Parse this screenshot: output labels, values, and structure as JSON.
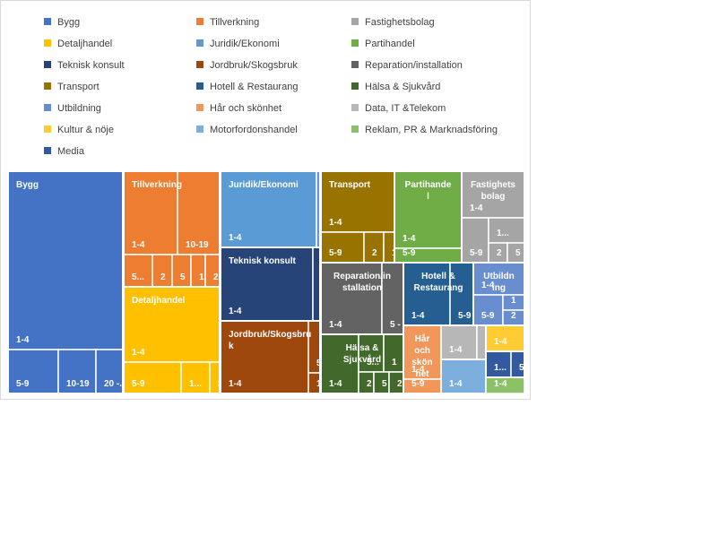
{
  "legend": [
    {
      "label": "Bygg",
      "color": "#4472c4"
    },
    {
      "label": "Tillverkning",
      "color": "#ed7d31"
    },
    {
      "label": "Fastighetsbolag",
      "color": "#a5a5a5"
    },
    {
      "label": "Detaljhandel",
      "color": "#ffc000"
    },
    {
      "label": "Juridik/Ekonomi",
      "color": "#5b9bd5"
    },
    {
      "label": "Partihandel",
      "color": "#70ad47"
    },
    {
      "label": "Teknisk konsult",
      "color": "#264478"
    },
    {
      "label": "Jordbruk/Skogsbruk",
      "color": "#9e480e"
    },
    {
      "label": "Reparation/installation",
      "color": "#636363"
    },
    {
      "label": "Transport",
      "color": "#997300"
    },
    {
      "label": "Hotell & Restaurang",
      "color": "#255e91"
    },
    {
      "label": "Hälsa & Sjukvård",
      "color": "#43682b"
    },
    {
      "label": "Utbildning",
      "color": "#698ed0"
    },
    {
      "label": "Hår och skönhet",
      "color": "#f1975a"
    },
    {
      "label": "Data, IT &Telekom",
      "color": "#b7b7b7"
    },
    {
      "label": "Kultur & nöje",
      "color": "#ffcd33"
    },
    {
      "label": "Motorfordonshandel",
      "color": "#7cafdd"
    },
    {
      "label": "Reklam, PR & Marknadsföring",
      "color": "#8cc168"
    },
    {
      "label": "Media",
      "color": "#335aa1"
    }
  ],
  "chart_data": {
    "type": "treemap",
    "title": "",
    "size_classes": [
      "1-4",
      "5-9",
      "10-19",
      "20-..."
    ],
    "groups": [
      {
        "name": "Bygg",
        "color": "#4472c4",
        "cells": [
          {
            "label": "1-4",
            "value": 25.2
          },
          {
            "label": "5-9",
            "value": 2.0
          },
          {
            "label": "10-19",
            "value": 1.6
          },
          {
            "label": "20 -...",
            "value": 1.2
          }
        ]
      },
      {
        "name": "Tillverkning",
        "color": "#ed7d31",
        "cells": [
          {
            "label": "1-4",
            "value": 3.9
          },
          {
            "label": "10-19",
            "value": 3.1
          },
          {
            "label": "5...",
            "value": 1.1
          },
          {
            "label": "2",
            "value": 0.9
          },
          {
            "label": "5",
            "value": 0.7
          },
          {
            "label": "1",
            "value": 0.6
          },
          {
            "label": "2",
            "value": 0.6
          }
        ]
      },
      {
        "name": "Detaljhandel",
        "color": "#ffc000",
        "cells": [
          {
            "label": "1-4",
            "value": 5.3
          },
          {
            "label": "5-9",
            "value": 2.3
          },
          {
            "label": "1...",
            "value": 1.0
          },
          {
            "label": "2",
            "value": 0.4
          }
        ]
      },
      {
        "name": "Juridik/Ekonomi",
        "color": "#5b9bd5",
        "cells": [
          {
            "label": "1-4",
            "value": 6.0
          },
          {
            "label": "",
            "value": 0.4
          }
        ]
      },
      {
        "name": "Teknisk konsult",
        "color": "#264478",
        "cells": [
          {
            "label": "1-4",
            "value": 5.6
          },
          {
            "label": "",
            "value": 0.4
          }
        ]
      },
      {
        "name": "Jordbruk/Skogsbruk",
        "color": "#9e480e",
        "cells": [
          {
            "label": "1-4",
            "value": 6.2
          },
          {
            "label": "5 -",
            "value": 0.7
          },
          {
            "label": "1",
            "value": 0.4
          }
        ]
      },
      {
        "name": "Transport",
        "color": "#997300",
        "cells": [
          {
            "label": "1-4",
            "value": 3.7
          },
          {
            "label": "5-9",
            "value": 1.1
          },
          {
            "label": "2",
            "value": 0.6
          },
          {
            "label": "1",
            "value": 0.3
          }
        ]
      },
      {
        "name": "Partihandel",
        "color": "#70ad47",
        "cells": [
          {
            "label": "1-4",
            "value": 4.3
          },
          {
            "label": "5-9",
            "value": 0.9
          }
        ]
      },
      {
        "name": "Fastighetsbolag",
        "color": "#a5a5a5",
        "cells": [
          {
            "label": "1-4",
            "value": 1.7
          },
          {
            "label": "5-9",
            "value": 1.0
          },
          {
            "label": "1...",
            "value": 0.7
          },
          {
            "label": "2",
            "value": 0.4
          },
          {
            "label": "5",
            "value": 0.3
          }
        ]
      },
      {
        "name": "Reparation/installation",
        "color": "#636363",
        "cells": [
          {
            "label": "1-4",
            "value": 3.6
          },
          {
            "label": "5 - 9",
            "value": 0.9
          }
        ]
      },
      {
        "name": "Hotell & Restaurang",
        "color": "#255e91",
        "cells": [
          {
            "label": "1-4",
            "value": 2.6
          },
          {
            "label": "5-9",
            "value": 1.2
          }
        ]
      },
      {
        "name": "Utbildning",
        "color": "#698ed0",
        "cells": [
          {
            "label": "1-4",
            "value": 1.3
          },
          {
            "label": "5-9",
            "value": 0.6
          },
          {
            "label": "1",
            "value": 0.4
          },
          {
            "label": "2",
            "value": 0.4
          }
        ]
      },
      {
        "name": "Hälsa & Sjukvård",
        "color": "#43682b",
        "cells": [
          {
            "label": "1-4",
            "value": 1.7
          },
          {
            "label": "5...",
            "value": 0.8
          },
          {
            "label": "1",
            "value": 0.5
          },
          {
            "label": "2",
            "value": 0.5
          },
          {
            "label": "5",
            "value": 0.5
          },
          {
            "label": "2",
            "value": 0.5
          }
        ]
      },
      {
        "name": "Hår och skönhet",
        "color": "#f1975a",
        "cells": [
          {
            "label": "1-4",
            "value": 1.3
          },
          {
            "label": "5-9",
            "value": 0.4
          }
        ]
      },
      {
        "name": "Data, IT &Telekom",
        "color": "#b7b7b7",
        "cells": [
          {
            "label": "1-4",
            "value": 1.0
          },
          {
            "label": "5",
            "value": 0.2
          }
        ]
      },
      {
        "name": "Motorfordonshandel",
        "color": "#7cafdd",
        "cells": [
          {
            "label": "1-4",
            "value": 1.1
          }
        ]
      },
      {
        "name": "Kultur & nöje",
        "color": "#ffcd33",
        "cells": [
          {
            "label": "1-4",
            "value": 0.7
          }
        ]
      },
      {
        "name": "Media",
        "color": "#335aa1",
        "cells": [
          {
            "label": "1...",
            "value": 0.4
          },
          {
            "label": "5",
            "value": 0.3
          }
        ]
      },
      {
        "name": "Reklam, PR & Marknadsföring",
        "color": "#8cc168",
        "cells": [
          {
            "label": "1-4",
            "value": 0.6
          }
        ]
      }
    ]
  }
}
